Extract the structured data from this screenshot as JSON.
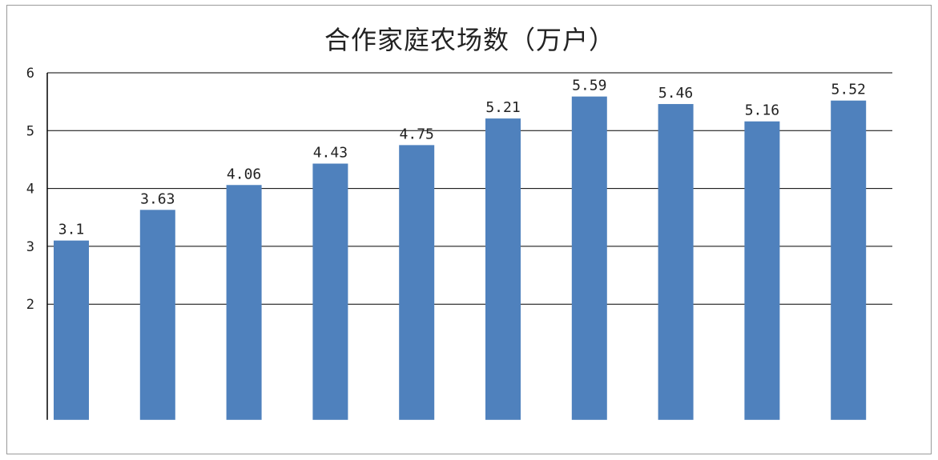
{
  "chart_data": {
    "type": "bar",
    "title": "合作家庭农场数（万户）",
    "categories": [
      "",
      "",
      "",
      "",
      "",
      "",
      "",
      "",
      "",
      "",
      ""
    ],
    "series": [
      {
        "values": [
          3.1,
          3.63,
          4.06,
          4.43,
          4.75,
          5.21,
          5.59,
          5.46,
          5.16,
          5.52,
          null
        ]
      }
    ],
    "data_labels": [
      "3.1",
      "3.63",
      "4.06",
      "4.43",
      "4.75",
      "5.21",
      "5.59",
      "5.46",
      "5.16",
      "5.52",
      ""
    ],
    "yticks": [
      "2",
      "3",
      "4",
      "5",
      "6"
    ],
    "ylim": [
      0,
      6
    ],
    "grid": true,
    "legend": "none",
    "colors": {
      "bar": "#4f81bd",
      "grid": "#000000",
      "axis": "#000000"
    }
  }
}
